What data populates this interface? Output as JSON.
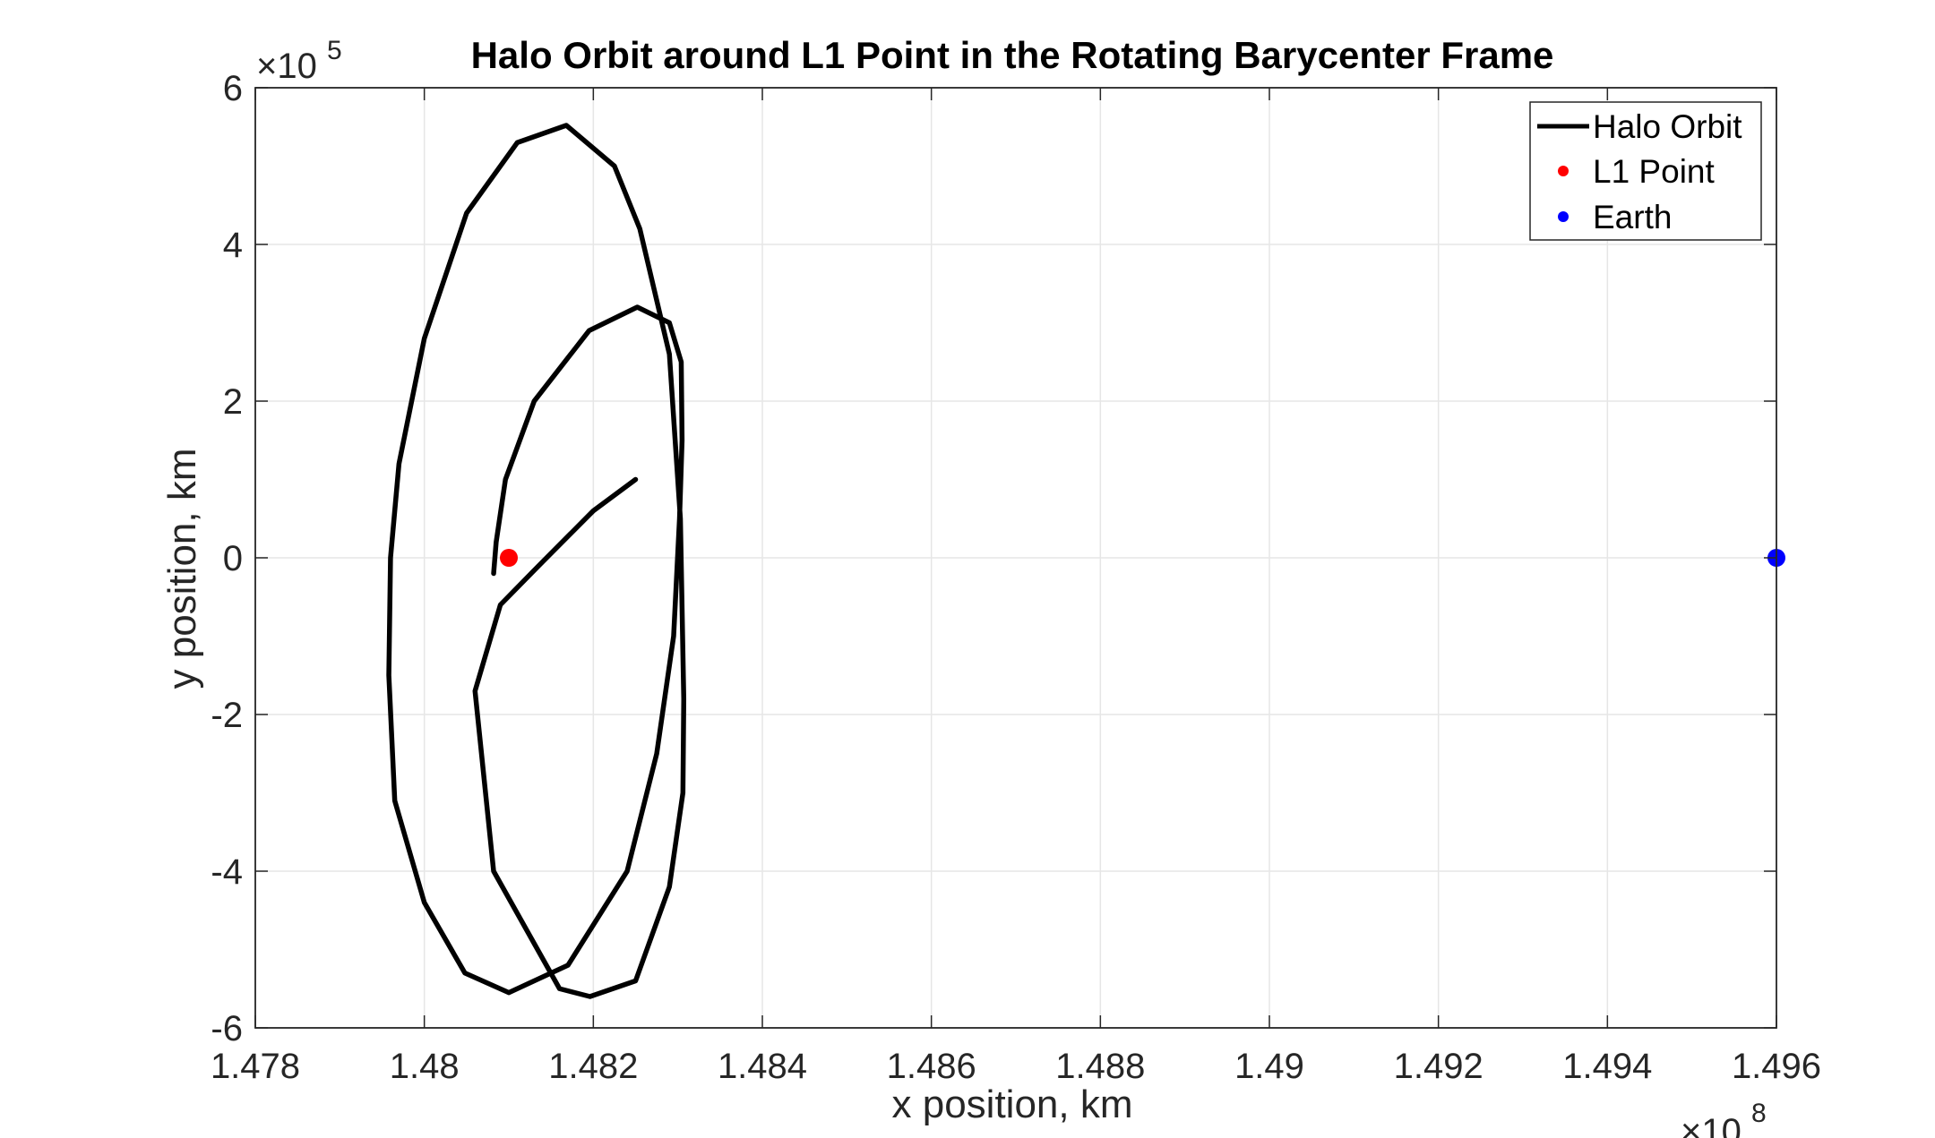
{
  "chart_data": {
    "type": "line",
    "title": "Halo Orbit around L1 Point in the Rotating Barycenter Frame",
    "xlabel": "x position, km",
    "ylabel": "y position, km",
    "xlim": [
      147800000,
      149600000
    ],
    "ylim": [
      -600000,
      600000
    ],
    "x_exponent": {
      "base": "×10",
      "power": "8"
    },
    "y_exponent": {
      "base": "×10",
      "power": "5"
    },
    "x_ticks": [
      147800000,
      148000000,
      148200000,
      148400000,
      148600000,
      148800000,
      149000000,
      149200000,
      149400000,
      149600000
    ],
    "x_tick_labels": [
      "1.478",
      "1.48",
      "1.482",
      "1.484",
      "1.486",
      "1.488",
      "1.49",
      "1.492",
      "1.494",
      "1.496"
    ],
    "y_ticks": [
      -600000,
      -400000,
      -200000,
      0,
      200000,
      400000,
      600000
    ],
    "y_tick_labels": [
      "-6",
      "-4",
      "-2",
      "0",
      "2",
      "4",
      "6"
    ],
    "grid": true,
    "legend_position": "top-right",
    "series": [
      {
        "name": "Halo Orbit",
        "type": "line",
        "color": "#000000",
        "x": [
          148250000,
          148200000,
          148140000,
          148090000,
          148060000,
          148082000,
          148160000,
          148196000,
          148250000,
          148290000,
          148306000,
          148307000,
          148303000,
          148290000,
          148255000,
          148225000,
          148168000,
          148110000,
          148050000,
          148000000,
          147970000,
          147960000,
          147958000,
          147965000,
          148000000,
          148048000,
          148100000,
          148170000,
          148240000,
          148275000,
          148295000,
          148302000,
          148305000,
          148304000,
          148290000,
          148252000,
          148195000,
          148130000,
          148096000,
          148085000,
          148082000
        ],
        "y": [
          100000,
          60000,
          -5000,
          -60000,
          -170000,
          -400000,
          -550000,
          -560000,
          -540000,
          -420000,
          -300000,
          -180000,
          50000,
          260000,
          420000,
          500000,
          552000,
          530000,
          440000,
          280000,
          120000,
          0,
          -150000,
          -310000,
          -440000,
          -530000,
          -555000,
          -520000,
          -400000,
          -250000,
          -100000,
          50000,
          150000,
          250000,
          300000,
          320000,
          290000,
          200000,
          100000,
          20000,
          -20000
        ]
      },
      {
        "name": "L1 Point",
        "type": "scatter",
        "color": "#ff0000",
        "x": [
          148100000
        ],
        "y": [
          0
        ]
      },
      {
        "name": "Earth",
        "type": "scatter",
        "color": "#0000ff",
        "x": [
          149600000
        ],
        "y": [
          0
        ]
      }
    ]
  }
}
